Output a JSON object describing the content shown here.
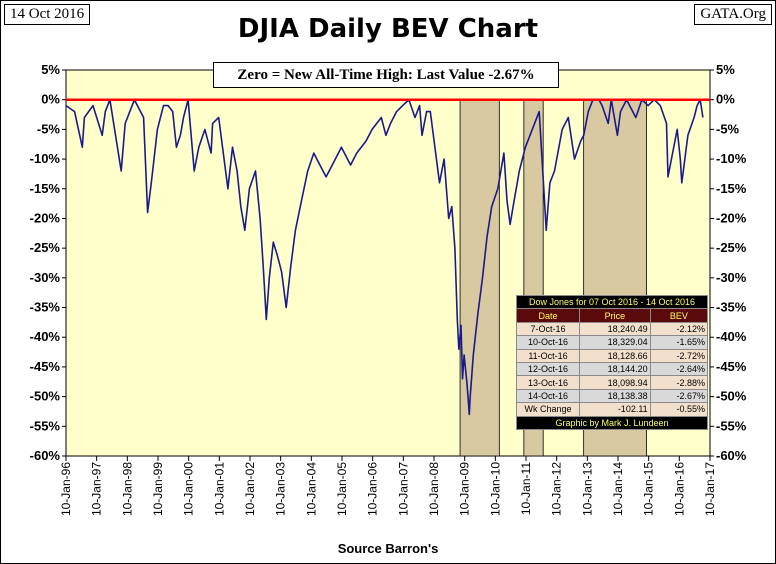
{
  "header": {
    "date_label": "14 Oct 2016",
    "source_label": "GATA.Org",
    "title": "DJIA Daily BEV Chart"
  },
  "annotation": "Zero = New All-Time High: Last Value  -2.67%",
  "footer": "Source Barron's",
  "colors": {
    "plot_bg": "#ffffcc",
    "series": "#1a1a8c",
    "zero_line": "#ff0000",
    "shade": "#d9c9a0"
  },
  "table": {
    "caption": "Dow Jones for 07 Oct 2016 - 14 Oct 2016",
    "headers": [
      "Date",
      "Price",
      "BEV"
    ],
    "rows": [
      [
        "7-Oct-16",
        "18,240.49",
        "-2.12%"
      ],
      [
        "10-Oct-16",
        "18,329.04",
        "-1.65%"
      ],
      [
        "11-Oct-16",
        "18,128.66",
        "-2.72%"
      ],
      [
        "12-Oct-16",
        "18,144.20",
        "-2.64%"
      ],
      [
        "13-Oct-16",
        "18,098.94",
        "-2.88%"
      ],
      [
        "14-Oct-16",
        "18,138.38",
        "-2.67%"
      ]
    ],
    "wk_change": [
      "Wk Change",
      "-102.11",
      "-0.55%"
    ],
    "credit": "Graphic by Mark J. Lundeen"
  },
  "chart_data": {
    "type": "line",
    "title": "DJIA Daily BEV Chart",
    "xlabel": "",
    "ylabel": "",
    "ylim": [
      -60,
      5
    ],
    "xlim": [
      1996.02,
      2017.02
    ],
    "grid": false,
    "y_ticks": [
      "5%",
      "0%",
      "-5%",
      "-10%",
      "-15%",
      "-20%",
      "-25%",
      "-30%",
      "-35%",
      "-40%",
      "-45%",
      "-50%",
      "-55%",
      "-60%"
    ],
    "x_ticks": [
      "10-Jan-96",
      "10-Jan-97",
      "10-Jan-98",
      "10-Jan-99",
      "10-Jan-00",
      "10-Jan-01",
      "10-Jan-02",
      "10-Jan-03",
      "10-Jan-04",
      "10-Jan-05",
      "10-Jan-06",
      "10-Jan-07",
      "10-Jan-08",
      "10-Jan-09",
      "10-Jan-10",
      "10-Jan-11",
      "10-Jan-12",
      "10-Jan-13",
      "10-Jan-14",
      "10-Jan-15",
      "10-Jan-16",
      "10-Jan-17"
    ],
    "reference_line": 0,
    "shaded_ranges": [
      [
        2008.87,
        2010.15
      ],
      [
        2010.95,
        2011.58
      ],
      [
        2012.9,
        2014.95
      ]
    ],
    "series": [
      {
        "x": [
          1996.02,
          1996.3,
          1996.55,
          1996.62,
          1996.9,
          1997.2,
          1997.3,
          1997.45,
          1997.82,
          1997.95,
          1998.25,
          1998.55,
          1998.68,
          1998.8,
          1999.0,
          1999.2,
          1999.35,
          1999.5,
          1999.62,
          1999.75,
          1999.85,
          2000.0,
          2000.2,
          2000.35,
          2000.55,
          2000.75,
          2000.8,
          2001.0,
          2001.3,
          2001.45,
          2001.6,
          2001.72,
          2001.85,
          2002.0,
          2002.2,
          2002.35,
          2002.45,
          2002.55,
          2002.65,
          2002.78,
          2002.9,
          2003.05,
          2003.2,
          2003.35,
          2003.5,
          2003.7,
          2003.9,
          2004.1,
          2004.3,
          2004.5,
          2004.8,
          2005.0,
          2005.3,
          2005.5,
          2005.8,
          2006.0,
          2006.3,
          2006.45,
          2006.6,
          2006.8,
          2007.0,
          2007.2,
          2007.4,
          2007.55,
          2007.63,
          2007.78,
          2007.9,
          2008.05,
          2008.2,
          2008.35,
          2008.5,
          2008.6,
          2008.7,
          2008.78,
          2008.83,
          2008.9,
          2008.95,
          2009.0,
          2009.1,
          2009.17,
          2009.2,
          2009.3,
          2009.45,
          2009.6,
          2009.75,
          2009.9,
          2010.1,
          2010.3,
          2010.4,
          2010.5,
          2010.6,
          2010.8,
          2011.0,
          2011.3,
          2011.45,
          2011.6,
          2011.68,
          2011.8,
          2011.95,
          2012.2,
          2012.4,
          2012.6,
          2012.8,
          2012.9,
          2013.05,
          2013.2,
          2013.4,
          2013.5,
          2013.7,
          2013.8,
          2014.0,
          2014.1,
          2014.3,
          2014.6,
          2014.8,
          2015.0,
          2015.2,
          2015.4,
          2015.6,
          2015.65,
          2015.8,
          2015.95,
          2016.05,
          2016.1,
          2016.3,
          2016.5,
          2016.6,
          2016.7,
          2016.79
        ],
        "y": [
          -1,
          -2,
          -8,
          -3,
          -1,
          -6,
          -2,
          0,
          -12,
          -4,
          0,
          -3,
          -19,
          -14,
          -5,
          -1,
          -1,
          -2,
          -8,
          -6,
          -3,
          0,
          -12,
          -8,
          -5,
          -9,
          -4,
          -3,
          -15,
          -8,
          -12,
          -18,
          -22,
          -15,
          -12,
          -20,
          -28,
          -37,
          -30,
          -24,
          -26,
          -29,
          -35,
          -28,
          -22,
          -17,
          -12,
          -9,
          -11,
          -13,
          -10,
          -8,
          -11,
          -9,
          -7,
          -5,
          -3,
          -6,
          -4,
          -2,
          -1,
          0,
          -3,
          -1,
          -6,
          -2,
          -2,
          -8,
          -14,
          -10,
          -20,
          -18,
          -25,
          -37,
          -42,
          -38,
          -47,
          -43,
          -48,
          -53,
          -50,
          -43,
          -36,
          -30,
          -23,
          -18,
          -15,
          -9,
          -17,
          -21,
          -18,
          -12,
          -8,
          -4,
          -2,
          -15,
          -22,
          -14,
          -12,
          -5,
          -3,
          -10,
          -7,
          -6,
          -2,
          0,
          0,
          -1,
          -4,
          0,
          -6,
          -2,
          0,
          -3,
          0,
          -1,
          0,
          -1,
          -4,
          -13,
          -9,
          -5,
          -10,
          -14,
          -6,
          -3,
          -1,
          0,
          -3
        ]
      }
    ]
  }
}
